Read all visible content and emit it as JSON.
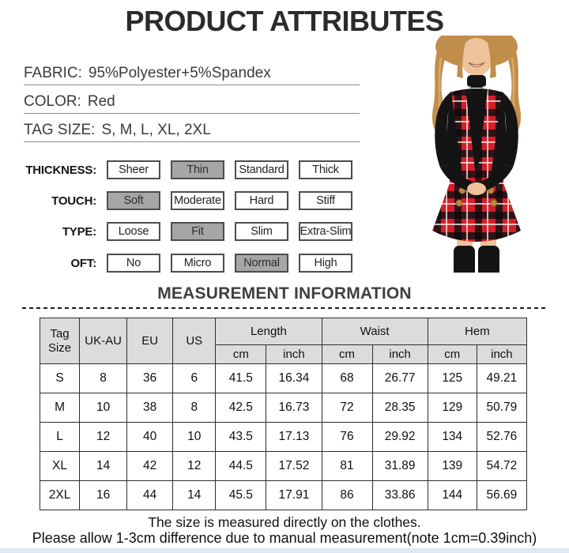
{
  "title": "PRODUCT ATTRIBUTES",
  "specs": [
    {
      "label": "FABRIC:",
      "value": "95%Polyester+5%Spandex"
    },
    {
      "label": "COLOR:",
      "value": "Red"
    },
    {
      "label": "TAG SIZE:",
      "value": "S, M, L, XL, 2XL"
    }
  ],
  "option_rows": [
    {
      "label": "THICKNESS:",
      "options": [
        "Sheer",
        "Thin",
        "Standard",
        "Thick"
      ],
      "selected": "Thin"
    },
    {
      "label": "TOUCH:",
      "options": [
        "Soft",
        "Moderate",
        "Hard",
        "Stiff"
      ],
      "selected": "Soft"
    },
    {
      "label": "TYPE:",
      "options": [
        "Loose",
        "Fit",
        "Slim",
        "Extra-Slim"
      ],
      "selected": "Fit"
    },
    {
      "label": "OFT:",
      "options": [
        "No",
        "Micro",
        "Normal",
        "High"
      ],
      "selected": "Normal"
    }
  ],
  "measurement": {
    "title": "MEASUREMENT INFORMATION",
    "table": {
      "simple_headers": [
        "Tag Size",
        "UK-AU",
        "EU",
        "US"
      ],
      "group_headers": [
        {
          "label": "Length",
          "sub": [
            "cm",
            "inch"
          ]
        },
        {
          "label": "Waist",
          "sub": [
            "cm",
            "inch"
          ]
        },
        {
          "label": "Hem",
          "sub": [
            "cm",
            "inch"
          ]
        }
      ],
      "rows": [
        {
          "cells": [
            "S",
            "8",
            "36",
            "6",
            "41.5",
            "16.34",
            "68",
            "26.77",
            "125",
            "49.21"
          ]
        },
        {
          "cells": [
            "M",
            "10",
            "38",
            "8",
            "42.5",
            "16.73",
            "72",
            "28.35",
            "129",
            "50.79"
          ]
        },
        {
          "cells": [
            "L",
            "12",
            "40",
            "10",
            "43.5",
            "17.13",
            "76",
            "29.92",
            "134",
            "52.76"
          ]
        },
        {
          "cells": [
            "XL",
            "14",
            "42",
            "12",
            "44.5",
            "17.52",
            "81",
            "31.89",
            "139",
            "54.72"
          ]
        },
        {
          "cells": [
            "2XL",
            "16",
            "44",
            "14",
            "45.5",
            "17.91",
            "86",
            "33.86",
            "144",
            "56.69"
          ]
        }
      ]
    }
  },
  "footer": {
    "note1": "The size is measured directly on the clothes.",
    "note2": "Please allow 1-3cm difference due to manual measurement(note 1cm=0.39inch)"
  },
  "colors": {
    "title_text": "#2b2b2b",
    "heading_text": "#3f3f3f",
    "selected_option_bg": "#a6a6a6",
    "option_border": "#4d4d4d",
    "table_header_bg": "#dcdcdc",
    "table_border": "#2e2e2e",
    "plaid_red": "#d31f2b",
    "hair_blonde": "#c08d4a",
    "skin": "#eec39c",
    "top_black": "#141414",
    "button_gold": "#b98a3e",
    "bottom_strip": "#dde8f2"
  }
}
